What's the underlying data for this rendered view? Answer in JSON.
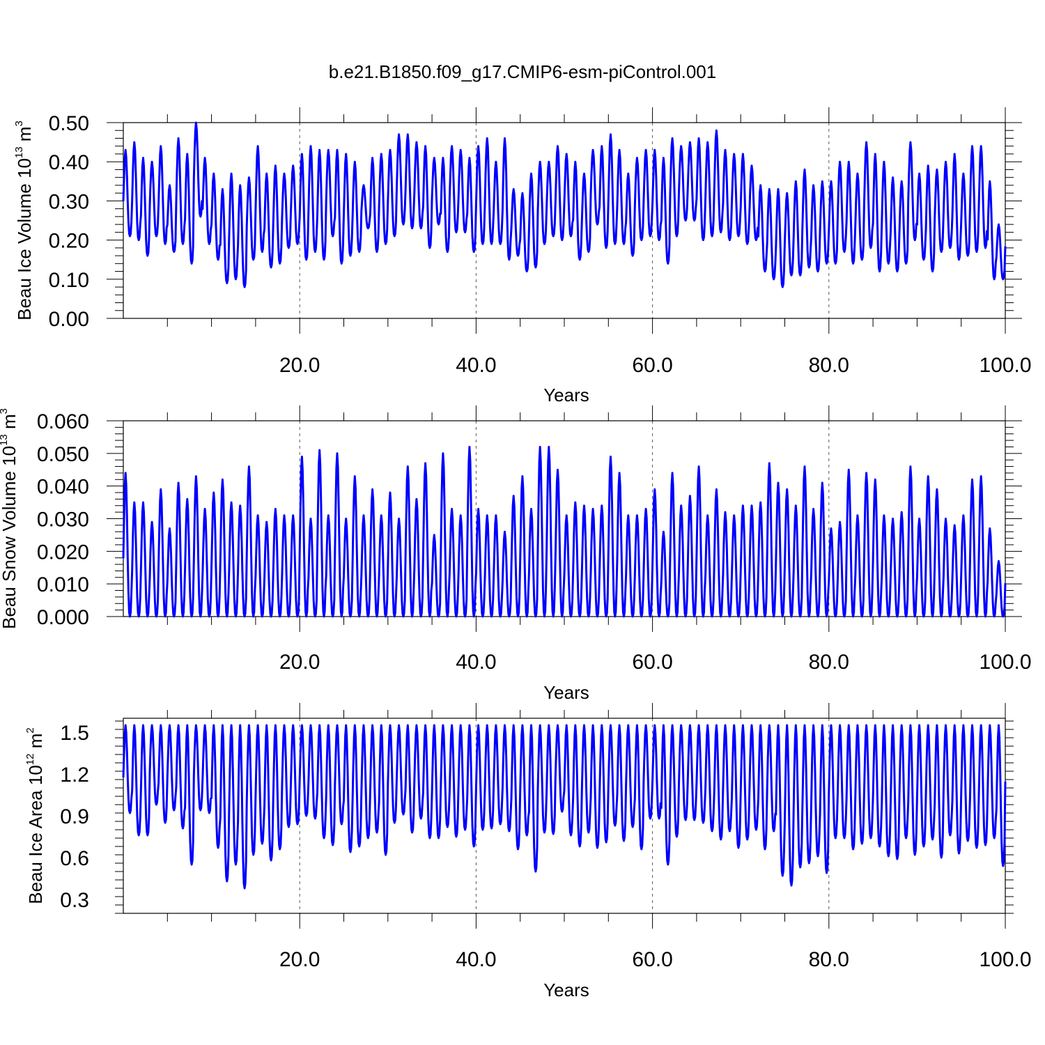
{
  "title": "b.e21.B1850.f09_g17.CMIP6-esm-piControl.001",
  "line_color": "#0000ff",
  "chart_data": [
    {
      "type": "line",
      "title": "",
      "xlabel": "Years",
      "ylabel_text": "Beau Ice Volume 10",
      "ylabel_exp": "13",
      "ylabel_unit": " m",
      "ylabel_unit_exp": "3",
      "xlim": [
        0,
        100
      ],
      "ylim": [
        0.0,
        0.5
      ],
      "xticks": [
        20,
        40,
        60,
        80,
        100
      ],
      "xtick_labels": [
        "20.0",
        "40.0",
        "60.0",
        "80.0",
        "100.0"
      ],
      "yticks": [
        0.0,
        0.1,
        0.2,
        0.3,
        0.4,
        0.5
      ],
      "ytick_labels": [
        "0.00",
        "0.10",
        "0.20",
        "0.30",
        "0.40",
        "0.50"
      ],
      "grid": "vertical dashed at major x ticks",
      "series": [
        {
          "points_per_year": 12,
          "annual_max": [
            0.43,
            0.45,
            0.41,
            0.4,
            0.44,
            0.34,
            0.46,
            0.42,
            0.5,
            0.41,
            0.37,
            0.33,
            0.37,
            0.34,
            0.36,
            0.44,
            0.37,
            0.39,
            0.37,
            0.39,
            0.42,
            0.44,
            0.43,
            0.43,
            0.43,
            0.42,
            0.4,
            0.34,
            0.41,
            0.42,
            0.43,
            0.47,
            0.47,
            0.45,
            0.44,
            0.41,
            0.41,
            0.44,
            0.43,
            0.41,
            0.44,
            0.46,
            0.4,
            0.46,
            0.33,
            0.32,
            0.37,
            0.4,
            0.4,
            0.44,
            0.42,
            0.4,
            0.37,
            0.43,
            0.44,
            0.47,
            0.43,
            0.37,
            0.41,
            0.43,
            0.43,
            0.41,
            0.46,
            0.44,
            0.45,
            0.46,
            0.45,
            0.48,
            0.43,
            0.42,
            0.42,
            0.39,
            0.34,
            0.33,
            0.33,
            0.32,
            0.35,
            0.38,
            0.34,
            0.35,
            0.35,
            0.4,
            0.4,
            0.37,
            0.45,
            0.42,
            0.4,
            0.36,
            0.35,
            0.45,
            0.37,
            0.39,
            0.38,
            0.4,
            0.42,
            0.37,
            0.44,
            0.44,
            0.35,
            0.24
          ],
          "annual_min": [
            0.21,
            0.2,
            0.16,
            0.21,
            0.19,
            0.17,
            0.19,
            0.14,
            0.26,
            0.19,
            0.15,
            0.09,
            0.1,
            0.08,
            0.15,
            0.17,
            0.13,
            0.14,
            0.18,
            0.19,
            0.15,
            0.17,
            0.15,
            0.21,
            0.14,
            0.16,
            0.17,
            0.23,
            0.17,
            0.19,
            0.21,
            0.24,
            0.23,
            0.23,
            0.18,
            0.24,
            0.17,
            0.22,
            0.22,
            0.17,
            0.19,
            0.19,
            0.19,
            0.15,
            0.16,
            0.12,
            0.13,
            0.19,
            0.21,
            0.2,
            0.21,
            0.15,
            0.17,
            0.24,
            0.18,
            0.19,
            0.19,
            0.16,
            0.2,
            0.21,
            0.2,
            0.14,
            0.21,
            0.25,
            0.25,
            0.2,
            0.21,
            0.22,
            0.2,
            0.21,
            0.19,
            0.2,
            0.12,
            0.1,
            0.08,
            0.11,
            0.11,
            0.13,
            0.12,
            0.14,
            0.14,
            0.17,
            0.14,
            0.15,
            0.18,
            0.12,
            0.14,
            0.12,
            0.14,
            0.2,
            0.15,
            0.12,
            0.17,
            0.18,
            0.15,
            0.16,
            0.17,
            0.18,
            0.1,
            0.1
          ]
        }
      ]
    },
    {
      "type": "line",
      "title": "",
      "xlabel": "Years",
      "ylabel_text": "Beau Snow Volume 10",
      "ylabel_exp": "13",
      "ylabel_unit": " m",
      "ylabel_unit_exp": "3",
      "xlim": [
        0,
        100
      ],
      "ylim": [
        0.0,
        0.06
      ],
      "xticks": [
        20,
        40,
        60,
        80,
        100
      ],
      "xtick_labels": [
        "20.0",
        "40.0",
        "60.0",
        "80.0",
        "100.0"
      ],
      "yticks": [
        0.0,
        0.01,
        0.02,
        0.03,
        0.04,
        0.05,
        0.06
      ],
      "ytick_labels": [
        "0.000",
        "0.010",
        "0.020",
        "0.030",
        "0.040",
        "0.050",
        "0.060"
      ],
      "grid": "vertical dashed at major x ticks",
      "series": [
        {
          "points_per_year": 12,
          "annual_max": [
            0.044,
            0.035,
            0.035,
            0.029,
            0.039,
            0.027,
            0.041,
            0.036,
            0.043,
            0.033,
            0.038,
            0.042,
            0.035,
            0.034,
            0.046,
            0.031,
            0.029,
            0.033,
            0.031,
            0.031,
            0.049,
            0.03,
            0.051,
            0.031,
            0.05,
            0.03,
            0.043,
            0.031,
            0.039,
            0.031,
            0.038,
            0.03,
            0.046,
            0.036,
            0.047,
            0.025,
            0.05,
            0.033,
            0.031,
            0.052,
            0.033,
            0.031,
            0.031,
            0.026,
            0.037,
            0.043,
            0.033,
            0.052,
            0.052,
            0.045,
            0.031,
            0.035,
            0.034,
            0.033,
            0.034,
            0.049,
            0.044,
            0.031,
            0.031,
            0.033,
            0.039,
            0.026,
            0.044,
            0.034,
            0.037,
            0.046,
            0.031,
            0.039,
            0.032,
            0.031,
            0.034,
            0.034,
            0.035,
            0.047,
            0.041,
            0.039,
            0.034,
            0.046,
            0.033,
            0.041,
            0.027,
            0.029,
            0.045,
            0.031,
            0.044,
            0.042,
            0.031,
            0.03,
            0.032,
            0.046,
            0.03,
            0.043,
            0.039,
            0.03,
            0.028,
            0.031,
            0.042,
            0.043,
            0.027,
            0.017
          ],
          "annual_min": [
            0.0
          ]
        }
      ]
    },
    {
      "type": "line",
      "title": "",
      "xlabel": "Years",
      "ylabel_text": "Beau Ice Area 10",
      "ylabel_exp": "12",
      "ylabel_unit": " m",
      "ylabel_unit_exp": "2",
      "xlim": [
        0,
        100
      ],
      "ylim": [
        0.2,
        1.6
      ],
      "xticks": [
        20,
        40,
        60,
        80,
        100
      ],
      "xtick_labels": [
        "20.0",
        "40.0",
        "60.0",
        "80.0",
        "100.0"
      ],
      "yticks": [
        0.3,
        0.6,
        0.9,
        1.2,
        1.5
      ],
      "ytick_labels": [
        "0.3",
        "0.6",
        "0.9",
        "1.2",
        "1.5"
      ],
      "grid": "vertical dashed at major x ticks",
      "series": [
        {
          "points_per_year": 12,
          "annual_max": [
            1.55
          ],
          "annual_min": [
            0.92,
            0.76,
            0.76,
            0.98,
            0.85,
            0.94,
            0.81,
            0.55,
            0.94,
            0.92,
            0.67,
            0.43,
            0.55,
            0.38,
            0.62,
            0.7,
            0.58,
            0.66,
            0.82,
            0.84,
            0.9,
            0.88,
            0.74,
            0.69,
            0.84,
            0.64,
            0.68,
            0.74,
            0.78,
            0.62,
            0.85,
            0.91,
            0.78,
            0.88,
            0.74,
            0.74,
            0.82,
            0.75,
            0.8,
            0.68,
            0.8,
            0.81,
            0.84,
            0.79,
            0.66,
            0.76,
            0.5,
            0.78,
            0.77,
            0.93,
            0.76,
            0.68,
            0.78,
            0.67,
            0.71,
            0.83,
            0.72,
            0.82,
            0.66,
            0.88,
            0.88,
            0.55,
            0.75,
            0.87,
            0.87,
            0.85,
            0.79,
            0.73,
            0.79,
            0.67,
            0.73,
            0.8,
            0.66,
            0.79,
            0.47,
            0.4,
            0.53,
            0.56,
            0.61,
            0.49,
            0.74,
            0.74,
            0.66,
            0.7,
            0.74,
            0.68,
            0.61,
            0.59,
            0.74,
            0.62,
            0.68,
            0.73,
            0.6,
            0.76,
            0.63,
            0.72,
            0.67,
            0.69,
            0.74,
            0.54
          ]
        }
      ]
    }
  ]
}
